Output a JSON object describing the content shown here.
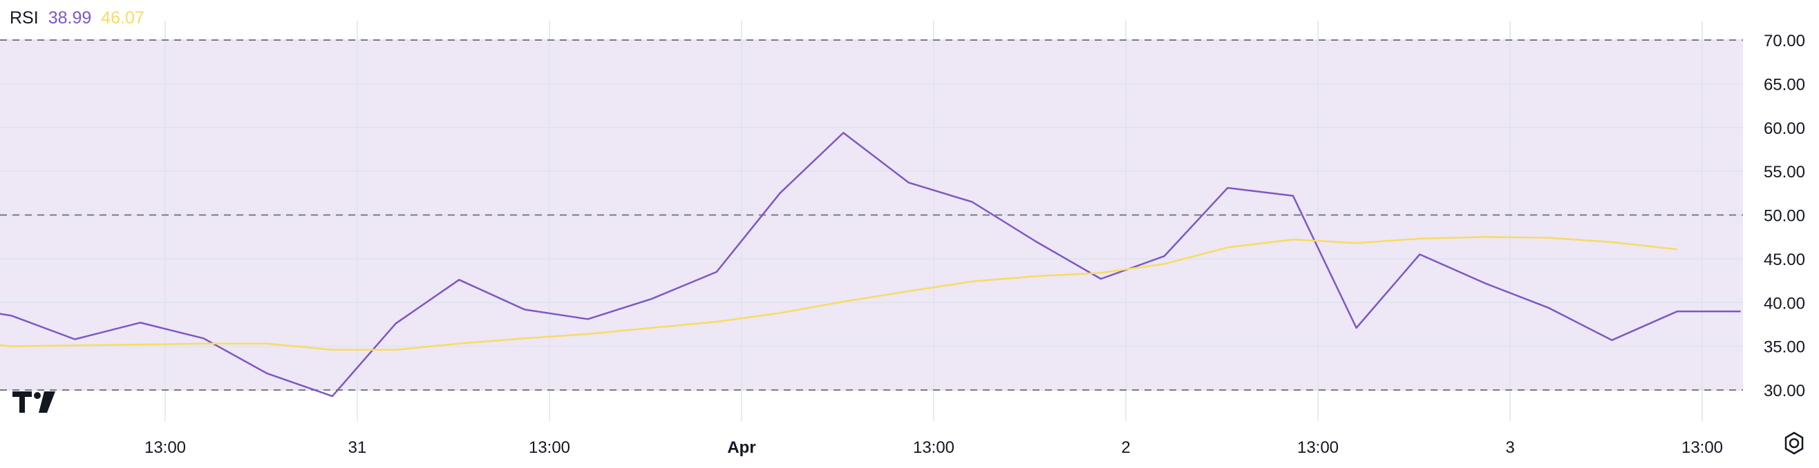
{
  "legend": {
    "name": "RSI",
    "value_rsi": "38.99",
    "value_ma": "46.07"
  },
  "colors": {
    "rsi_line": "#7e57c2",
    "ma_line": "#f8dc60",
    "band_fill": "#ede7f6",
    "grid": "#e0e3eb",
    "band_line": "#787b86"
  },
  "icons": {
    "logo": "tradingview-logo-icon",
    "settings": "settings-icon"
  },
  "chart_data": {
    "type": "line",
    "y_ticks": [
      "70.00",
      "65.00",
      "60.00",
      "55.00",
      "50.00",
      "45.00",
      "40.00",
      "35.00",
      "30.00"
    ],
    "ylim": [
      28.5,
      70.2
    ],
    "x_labels": [
      {
        "label": "13:00",
        "x": 1
      },
      {
        "label": "31",
        "x": 2
      },
      {
        "label": "13:00",
        "x": 3
      },
      {
        "label": "Apr",
        "x": 4,
        "bold": true
      },
      {
        "label": "13:00",
        "x": 5
      },
      {
        "label": "2",
        "x": 6
      },
      {
        "label": "13:00",
        "x": 7
      },
      {
        "label": "3",
        "x": 8
      },
      {
        "label": "13:00",
        "x": 9
      }
    ],
    "xlim": [
      0,
      9.22
    ],
    "bands": [
      70,
      50,
      30
    ],
    "series": [
      {
        "key": "rsi",
        "x": [
          0,
          0.2,
          0.53,
          0.87,
          1.2,
          1.53,
          1.87,
          2.2,
          2.53,
          2.87,
          3.2,
          3.53,
          3.87,
          4.2,
          4.53,
          4.87,
          5.2,
          5.53,
          5.87,
          6.2,
          6.53,
          6.87,
          7.2,
          7.53,
          7.87,
          8.2,
          8.53,
          8.87,
          9.2
        ],
        "values": [
          39.2,
          38.5,
          35.8,
          37.7,
          35.9,
          31.9,
          29.3,
          37.6,
          42.6,
          39.2,
          38.1,
          40.4,
          43.5,
          52.5,
          59.4,
          53.7,
          51.5,
          47.0,
          42.7,
          45.3,
          53.1,
          52.2,
          37.1,
          45.5,
          42.2,
          39.4,
          35.7,
          38.99,
          38.99
        ]
      },
      {
        "key": "ma",
        "x": [
          0,
          0.2,
          0.53,
          0.87,
          1.2,
          1.53,
          1.87,
          2.2,
          2.53,
          2.87,
          3.2,
          3.53,
          3.87,
          4.2,
          4.53,
          4.87,
          5.2,
          5.53,
          5.87,
          6.2,
          6.53,
          6.87,
          7.2,
          7.53,
          7.87,
          8.2,
          8.53,
          8.87
        ],
        "values": [
          35.4,
          35.0,
          35.1,
          35.2,
          35.3,
          35.3,
          34.6,
          34.6,
          35.3,
          35.9,
          36.4,
          37.1,
          37.8,
          38.8,
          40.1,
          41.3,
          42.4,
          43.0,
          43.4,
          44.4,
          46.3,
          47.2,
          46.8,
          47.3,
          47.5,
          47.4,
          46.9,
          46.07
        ]
      }
    ]
  }
}
